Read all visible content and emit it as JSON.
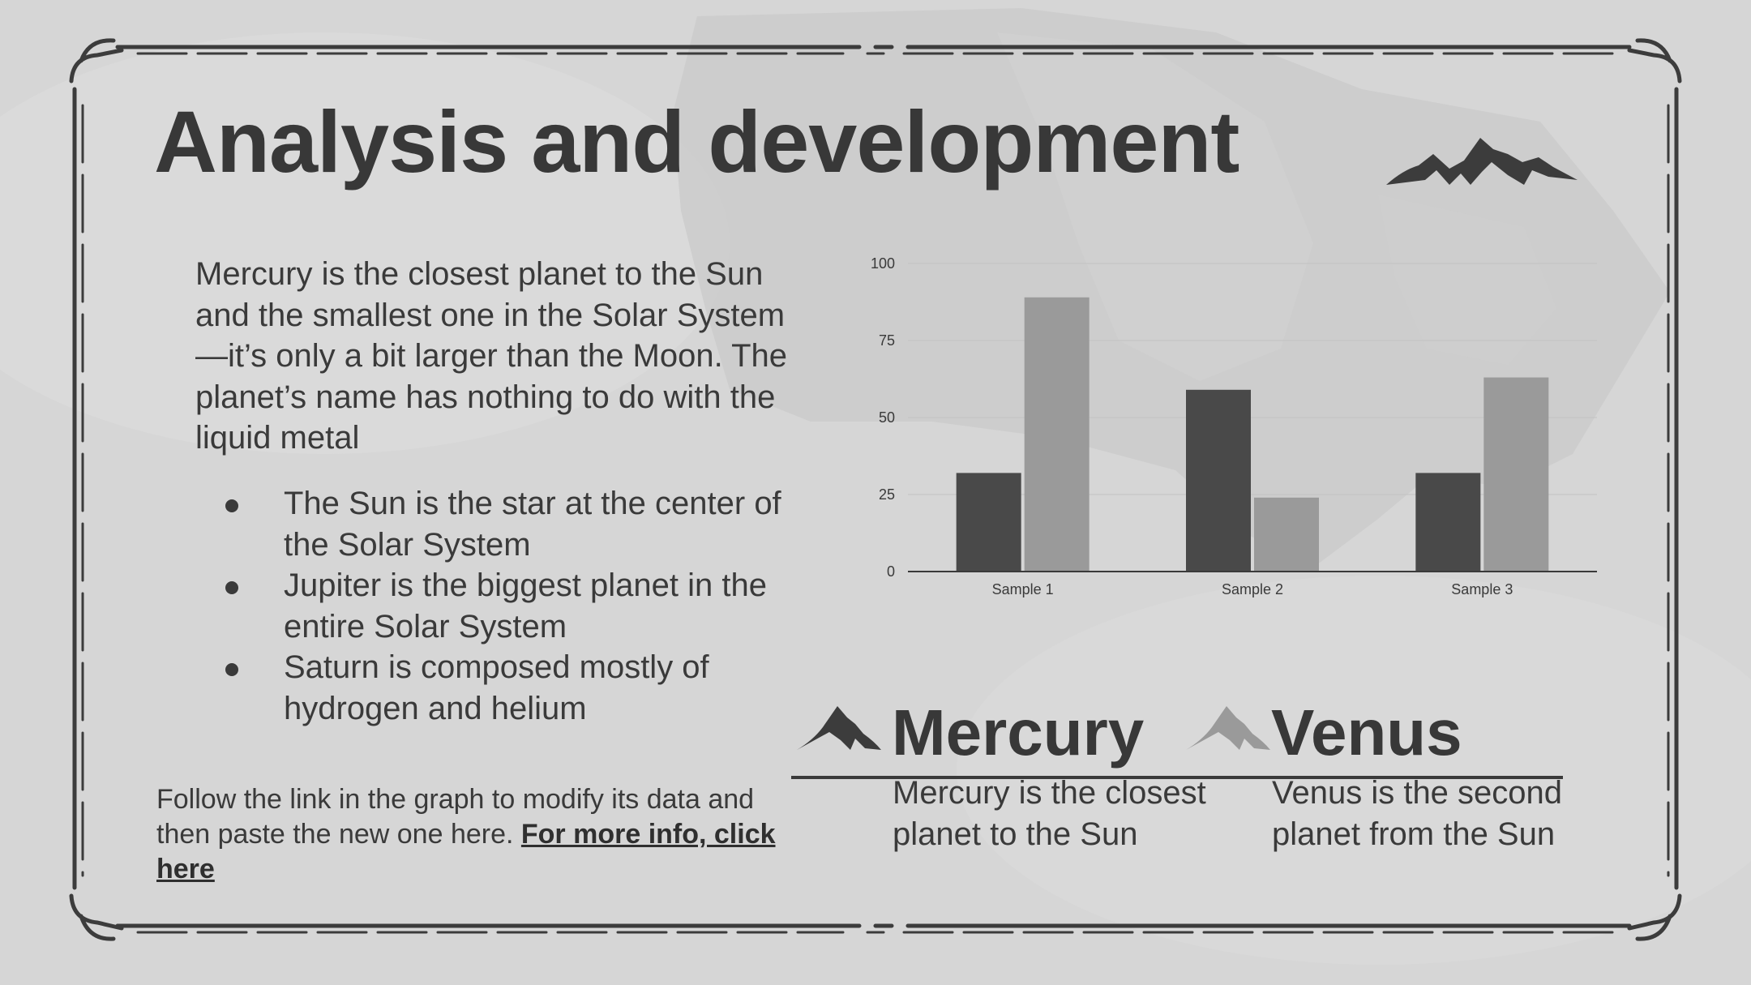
{
  "slide": {
    "title": "Analysis and development",
    "intro": "Mercury is the closest planet to the Sun and the smallest one in the Solar System—it’s only a bit larger than the Moon. The planet’s name has nothing to do with the liquid metal",
    "bullets": [
      "The Sun is the star at the center of the Solar System",
      "Jupiter is the biggest planet in the entire Solar System",
      "Saturn is composed mostly of hydrogen and helium"
    ],
    "footnote": {
      "text": "Follow the link in the graph to modify its data and then paste the new one here. ",
      "link": "For more info, click here"
    },
    "planets": [
      {
        "name": "Mercury",
        "description": "Mercury is the closest planet to the Sun"
      },
      {
        "name": "Venus",
        "description": "Venus is the second planet from the Sun"
      }
    ],
    "colors": {
      "background": "#d6d6d6",
      "ink": "#3a3a3a",
      "series_dark": "#494949",
      "series_light": "#9a9a9a"
    }
  },
  "chart_data": {
    "type": "bar",
    "categories": [
      "Sample 1",
      "Sample 2",
      "Sample 3"
    ],
    "series": [
      {
        "values": [
          32,
          59,
          32
        ]
      },
      {
        "values": [
          89,
          24,
          63
        ]
      }
    ],
    "yticks": [
      0,
      25,
      50,
      75,
      100
    ],
    "ylim": [
      0,
      100
    ],
    "grid": true
  }
}
